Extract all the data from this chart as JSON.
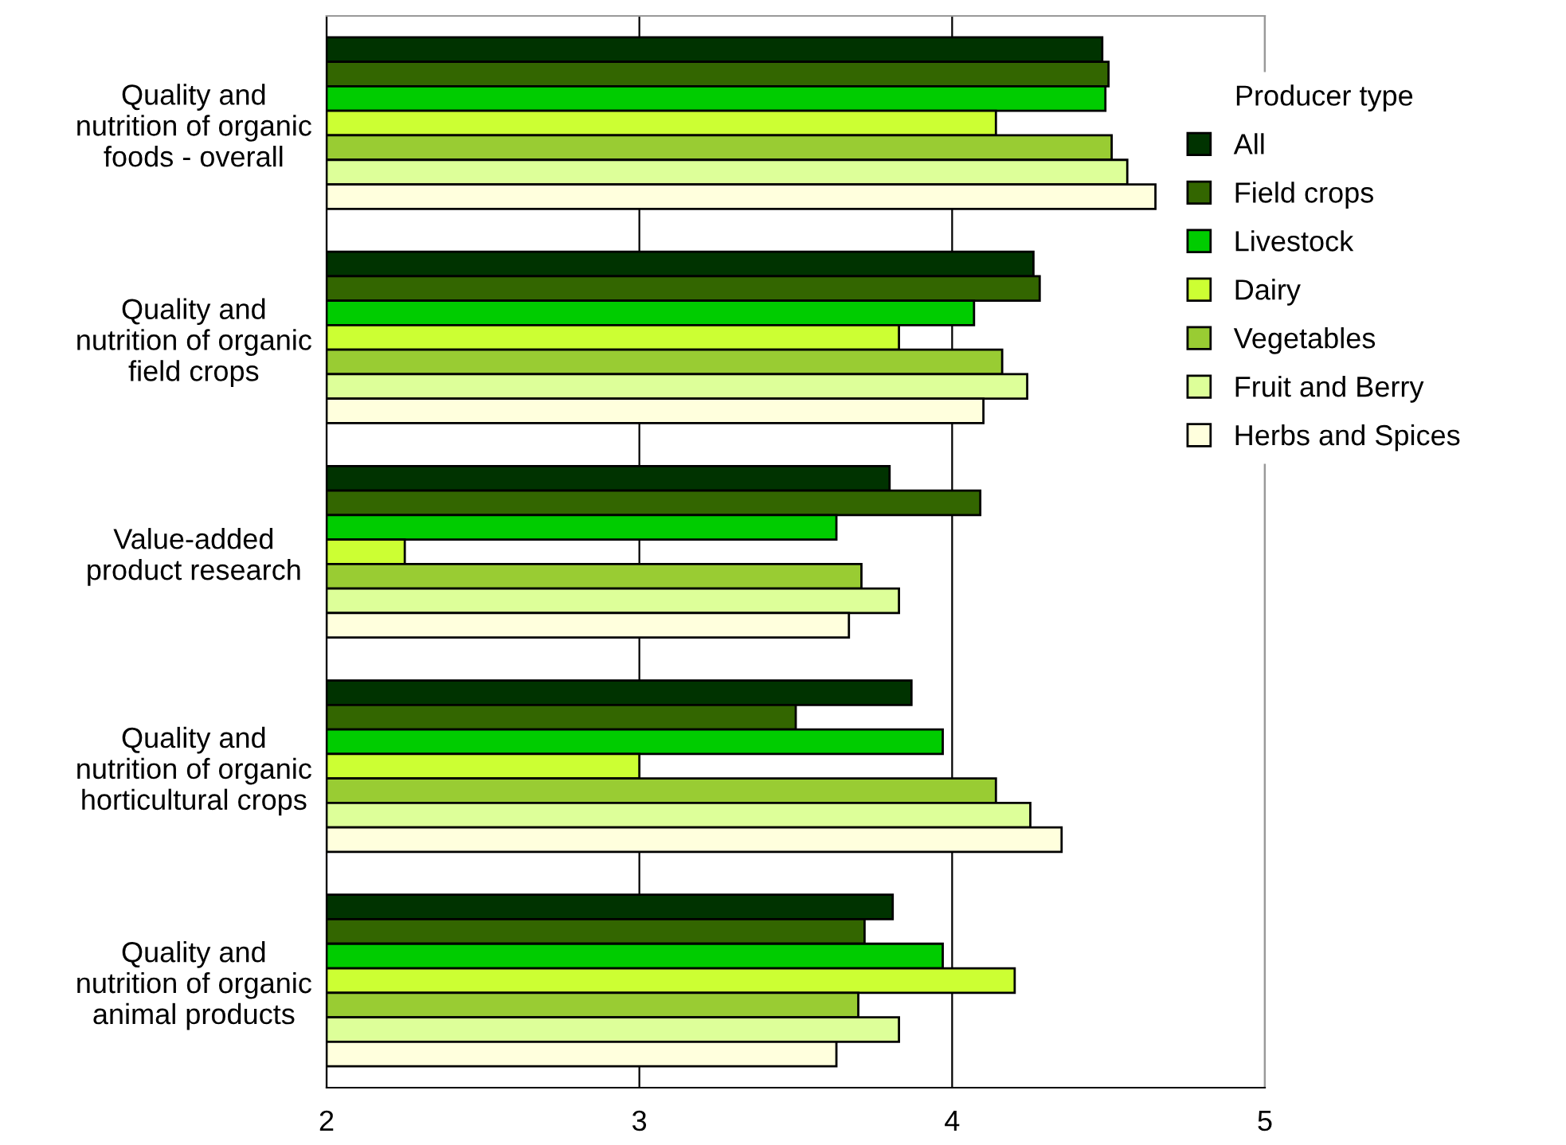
{
  "chart_data": {
    "type": "bar",
    "orientation": "horizontal",
    "categories": [
      "Quality and\nnutrition of organic\nfoods - overall",
      "Quality and\nnutrition of organic\nfield crops",
      "Value-added\nproduct research",
      "Quality and\nnutrition of organic\nhorticultural crops",
      "Quality and\nnutrition of organic\nanimal products"
    ],
    "series": [
      {
        "name": "All",
        "color": "#003300",
        "values": [
          4.48,
          4.26,
          3.8,
          3.87,
          3.81
        ]
      },
      {
        "name": "Field crops",
        "color": "#336600",
        "values": [
          4.5,
          4.28,
          4.09,
          3.5,
          3.72
        ]
      },
      {
        "name": "Livestock",
        "color": "#00cc00",
        "values": [
          4.49,
          4.07,
          3.63,
          3.97,
          3.97
        ]
      },
      {
        "name": "Dairy",
        "color": "#ccff33",
        "values": [
          4.14,
          3.83,
          2.25,
          3.0,
          4.2
        ]
      },
      {
        "name": "Vegetables",
        "color": "#99cc33",
        "values": [
          4.51,
          4.16,
          3.71,
          4.14,
          3.7
        ]
      },
      {
        "name": "Fruit and Berry",
        "color": "#ddff99",
        "values": [
          4.56,
          4.24,
          3.83,
          4.25,
          3.83
        ]
      },
      {
        "name": "Herbs and Spices",
        "color": "#ffffdd",
        "values": [
          4.65,
          4.1,
          3.67,
          4.35,
          3.63
        ]
      }
    ],
    "xlim": [
      2,
      5
    ],
    "xticks": [
      2,
      3,
      4,
      5
    ],
    "grid": "x",
    "legend": "right",
    "legend_title": "Producer type"
  }
}
